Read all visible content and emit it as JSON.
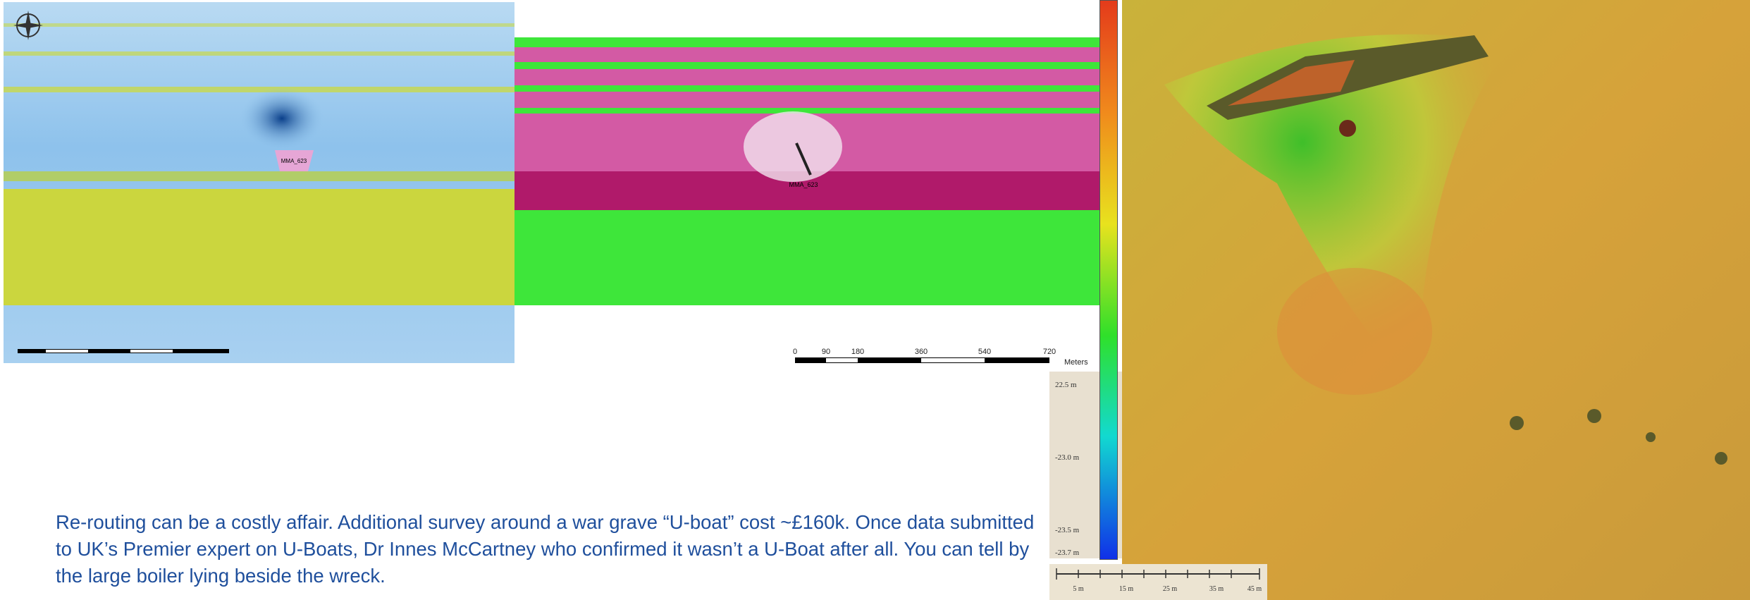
{
  "left_map": {
    "label": "MMA_623"
  },
  "middle_map": {
    "label": "MMA_623",
    "scale": {
      "ticks": [
        "0",
        "90",
        "180",
        "360",
        "540",
        "720"
      ],
      "unit": "Meters"
    }
  },
  "depth_legend": {
    "labels": [
      "22.5 m",
      "-23.0 m",
      "-23.5 m",
      "-23.7 m"
    ]
  },
  "right_map": {
    "scale": {
      "ticks": [
        "5 m",
        "15 m",
        "25 m",
        "35 m",
        "45 m"
      ]
    }
  },
  "body": {
    "paragraph": "Re-routing can be a costly affair. Additional survey around a war grave “U-boat” cost ~£160k. Once data submitted to UK’s Premier expert on U-Boats, Dr Innes McCartney who confirmed it wasn’t a U-Boat after all. You can tell by the large boiler lying beside the wreck."
  }
}
